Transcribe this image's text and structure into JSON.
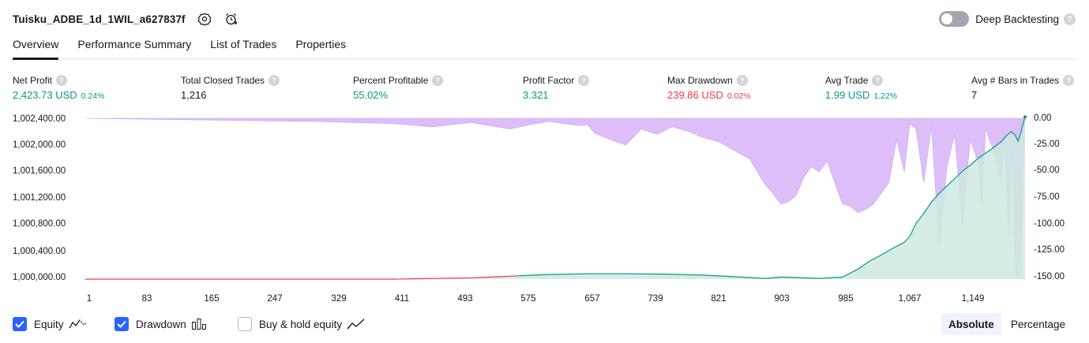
{
  "header": {
    "strategy_name": "Tuisku_ADBE_1d_1WIL_a627837f",
    "settings_icon": "gear-icon",
    "alert_icon": "alarm-clock-plus-icon",
    "deep_backtesting_label": "Deep Backtesting",
    "deep_backtesting_enabled": false,
    "help_glyph": "?"
  },
  "tabs": [
    {
      "label": "Overview",
      "active": true
    },
    {
      "label": "Performance Summary",
      "active": false
    },
    {
      "label": "List of Trades",
      "active": false
    },
    {
      "label": "Properties",
      "active": false
    }
  ],
  "metrics": [
    {
      "label": "Net Profit",
      "value": "2,423.73 USD",
      "pct": "0.24%",
      "color": "#089981"
    },
    {
      "label": "Total Closed Trades",
      "value": "1,216",
      "pct": "",
      "color": "#131722"
    },
    {
      "label": "Percent Profitable",
      "value": "55.02%",
      "pct": "",
      "color": "#089981"
    },
    {
      "label": "Profit Factor",
      "value": "3.321",
      "pct": "",
      "color": "#089981"
    },
    {
      "label": "Max Drawdown",
      "value": "239.86 USD",
      "pct": "0.02%",
      "color": "#f23645"
    },
    {
      "label": "Avg Trade",
      "value": "1.99 USD",
      "pct": "1.22%",
      "color": "#089981"
    },
    {
      "label": "Avg # Bars in Trades",
      "value": "7",
      "pct": "",
      "color": "#131722"
    }
  ],
  "chart_data": {
    "type": "area",
    "y_left_ticks": [
      "1,002,400.00",
      "1,002,000.00",
      "1,001,600.00",
      "1,001,200.00",
      "1,000,800.00",
      "1,000,400.00",
      "1,000,000.00"
    ],
    "y_right_ticks": [
      "0.00",
      "-25.00",
      "-50.00",
      "-75.00",
      "-100.00",
      "-125.00",
      "-150.00"
    ],
    "x_ticks": [
      "1",
      "83",
      "165",
      "247",
      "329",
      "411",
      "493",
      "575",
      "657",
      "739",
      "821",
      "903",
      "985",
      "1,067",
      "1,149"
    ],
    "ylim_left": [
      1000000,
      1002400
    ],
    "ylim_right": [
      -150,
      0
    ],
    "xlim": [
      1,
      1216
    ],
    "series": [
      {
        "name": "Equity",
        "axis": "left",
        "color": "#089981",
        "x": [
          1,
          100,
          200,
          300,
          400,
          500,
          560,
          580,
          600,
          650,
          700,
          750,
          800,
          850,
          880,
          900,
          920,
          950,
          980,
          1000,
          1015,
          1030,
          1045,
          1060,
          1067,
          1075,
          1085,
          1095,
          1105,
          1115,
          1125,
          1135,
          1145,
          1155,
          1165,
          1175,
          1185,
          1192,
          1198,
          1203,
          1207,
          1211,
          1213,
          1216
        ],
        "y": [
          1000000,
          1000000,
          1000000,
          1000000,
          1000000,
          1000020,
          1000050,
          1000060,
          1000070,
          1000080,
          1000080,
          1000075,
          1000060,
          1000030,
          1000010,
          1000030,
          1000025,
          1000010,
          1000030,
          1000150,
          1000270,
          1000360,
          1000460,
          1000550,
          1000640,
          1000830,
          1000980,
          1001150,
          1001280,
          1001390,
          1001500,
          1001610,
          1001700,
          1001800,
          1001880,
          1001960,
          1002050,
          1002140,
          1002200,
          1002150,
          1002060,
          1002200,
          1002300,
          1002420
        ]
      },
      {
        "name": "Drawdown",
        "axis": "right",
        "color": "#d7b3f7",
        "x": [
          1,
          100,
          200,
          300,
          400,
          450,
          500,
          550,
          575,
          600,
          620,
          640,
          650,
          660,
          680,
          700,
          720,
          740,
          760,
          780,
          800,
          820,
          840,
          860,
          870,
          880,
          890,
          900,
          910,
          920,
          930,
          940,
          950,
          960,
          970,
          980,
          990,
          1000,
          1010,
          1020,
          1030,
          1040,
          1050,
          1060,
          1067,
          1075,
          1085,
          1095,
          1105,
          1115,
          1125,
          1135,
          1145,
          1155,
          1160,
          1165,
          1175,
          1185,
          1190,
          1195,
          1200,
          1203,
          1206,
          1208,
          1210,
          1213,
          1216
        ],
        "y": [
          0,
          -1,
          -2,
          -3,
          -5,
          -8,
          -4,
          -10,
          -6,
          -3,
          -5,
          -7,
          -6,
          -14,
          -20,
          -25,
          -10,
          -15,
          -8,
          -12,
          -18,
          -22,
          -30,
          -38,
          -50,
          -62,
          -70,
          -80,
          -78,
          -72,
          -55,
          -45,
          -50,
          -40,
          -60,
          -80,
          -82,
          -88,
          -85,
          -80,
          -70,
          -60,
          -20,
          -50,
          -5,
          -10,
          -60,
          -8,
          -120,
          -45,
          -15,
          -100,
          -20,
          -40,
          -80,
          -10,
          -30,
          -60,
          -20,
          -110,
          -30,
          -130,
          -150,
          -120,
          -148,
          -60,
          -2
        ]
      }
    ]
  },
  "legend": [
    {
      "label": "Equity",
      "checked": true,
      "icon": "line-chart-icon"
    },
    {
      "label": "Drawdown",
      "checked": true,
      "icon": "bar-chart-icon"
    },
    {
      "label": "Buy & hold equity",
      "checked": false,
      "icon": "trend-line-icon"
    }
  ],
  "view_modes": [
    {
      "label": "Absolute",
      "active": true
    },
    {
      "label": "Percentage",
      "active": false
    }
  ]
}
